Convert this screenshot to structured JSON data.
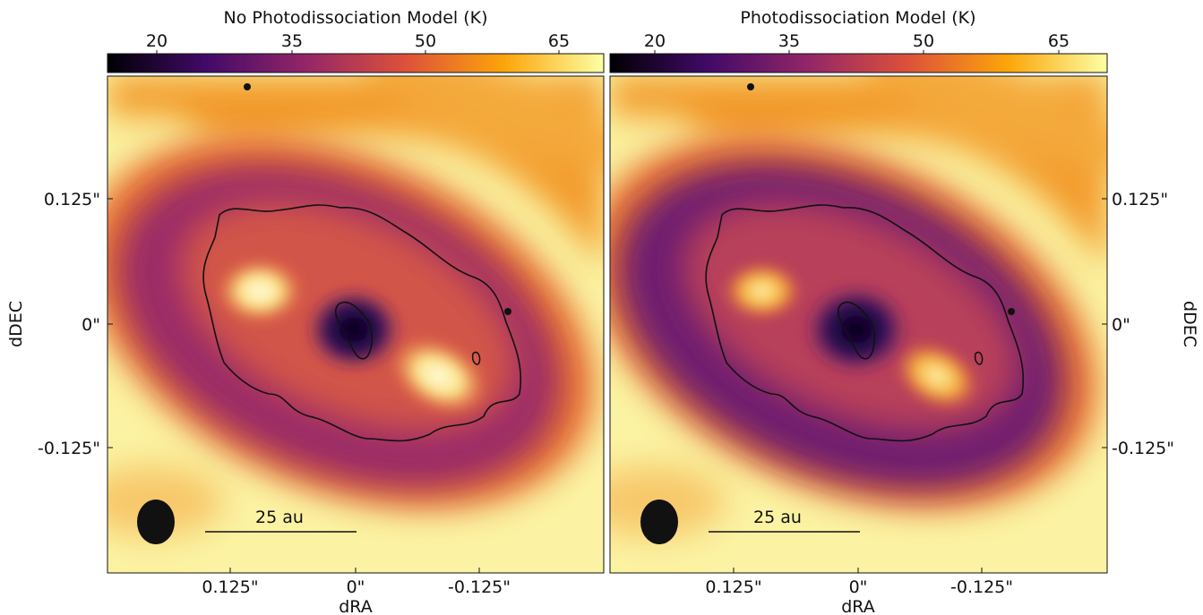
{
  "panels": [
    {
      "colorbar_title": "No Photodissociation Model (K)",
      "colorbar_ticks": [
        "20",
        "35",
        "50",
        "65"
      ],
      "scale_bar_label": "25 au",
      "x_ticks": [
        "0.125\"",
        "0\"",
        "-0.125\""
      ],
      "x_label": "dRA",
      "y_ticks": [
        "0.125\"",
        "0\"",
        "-0.125\""
      ],
      "y_label": "dDEC"
    },
    {
      "colorbar_title": "Photodissociation Model (K)",
      "colorbar_ticks": [
        "20",
        "35",
        "50",
        "65"
      ],
      "scale_bar_label": "25 au",
      "x_ticks": [
        "0.125\"",
        "0\"",
        "-0.125\""
      ],
      "x_label": "dRA",
      "y_ticks": [
        "0.125\"",
        "0\"",
        "-0.125\""
      ],
      "y_label": "dDEC"
    }
  ],
  "colormap": [
    "#000004",
    "#420a68",
    "#932667",
    "#dd513a",
    "#fca50a",
    "#fcffa4"
  ],
  "colors": {
    "background": "#fbf3a3",
    "outer_ring": "#f08a24",
    "mid_ring": "#c44a4a",
    "inner_disk": "#6a1f6e",
    "center": "#0b0420"
  }
}
